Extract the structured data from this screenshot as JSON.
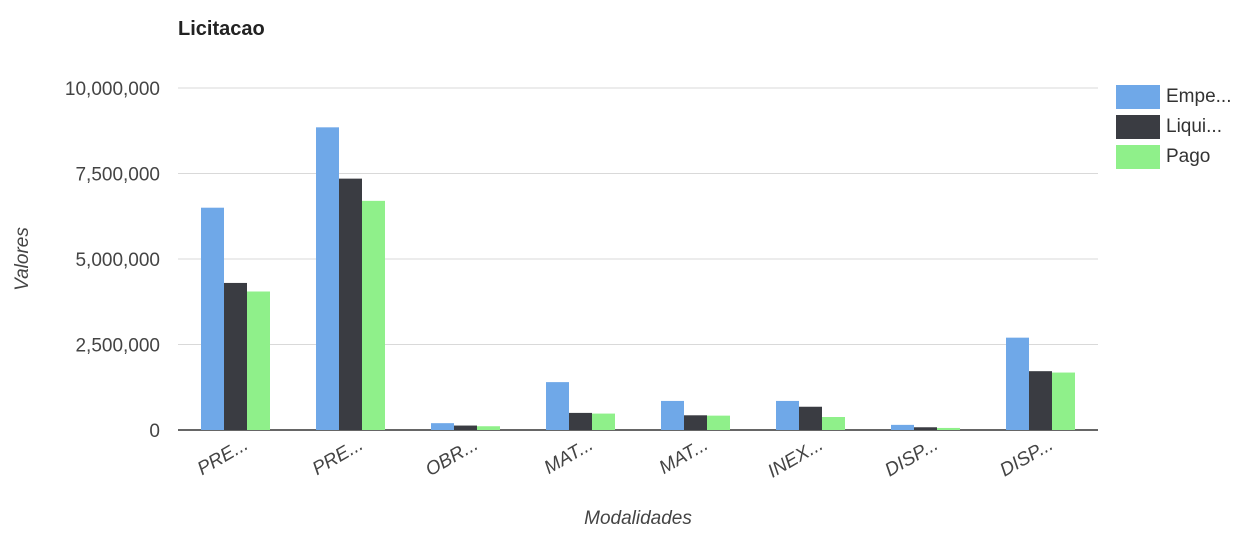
{
  "chart_data": {
    "type": "bar",
    "title": "Licitacao",
    "xlabel": "Modalidades",
    "ylabel": "Valores",
    "categories": [
      "PRE...",
      "PRE...",
      "OBR...",
      "MAT...",
      "MAT...",
      "INEX...",
      "DISP...",
      "DISP..."
    ],
    "series": [
      {
        "name": "Empe...",
        "color": "#6fa8e8",
        "values": [
          6500000,
          8850000,
          200000,
          1400000,
          850000,
          850000,
          150000,
          2700000
        ]
      },
      {
        "name": "Liqui...",
        "color": "#3a3c42",
        "values": [
          4300000,
          7350000,
          130000,
          500000,
          430000,
          680000,
          80000,
          1720000
        ]
      },
      {
        "name": "Pago",
        "color": "#8ff08a",
        "values": [
          4050000,
          6700000,
          110000,
          480000,
          420000,
          380000,
          60000,
          1680000
        ]
      }
    ],
    "ylim": [
      0,
      10000000
    ],
    "yticks": [
      0,
      2500000,
      5000000,
      7500000,
      10000000
    ],
    "ytick_labels": [
      "0",
      "2,500,000",
      "5,000,000",
      "7,500,000",
      "10,000,000"
    ],
    "grid": true,
    "legend_position": "right"
  }
}
